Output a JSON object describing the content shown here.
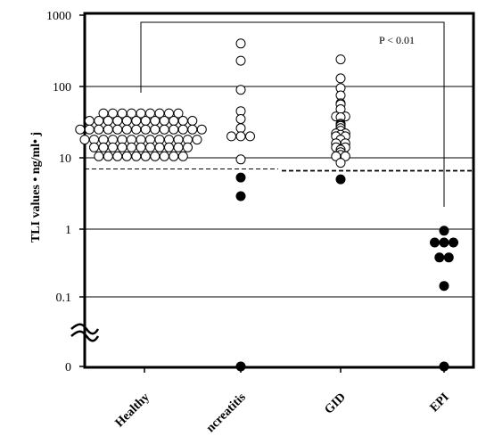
{
  "chart_data": {
    "type": "scatter",
    "ylabel": "TLI values • ng/ml• j",
    "yscale": "log",
    "ylim": [
      0,
      1000
    ],
    "yticks": [
      "1000",
      "100",
      "10",
      "1",
      "0.1",
      "0"
    ],
    "categories": [
      "Healthy",
      "Pancreatitis",
      "GID",
      "EPI"
    ],
    "category_labels_visible": [
      "Healthy",
      "ncreatitis",
      "GID",
      "EPI"
    ],
    "axis_break": "between 0.1 and 0",
    "reference_lines": [
      {
        "style": "dashed",
        "y": 6.5
      }
    ],
    "annotation": {
      "text": "P < 0.01",
      "between": [
        "Healthy",
        "EPI"
      ]
    },
    "series": [
      {
        "category": "Healthy",
        "marker": "open-circle",
        "values": [
          42,
          42,
          42,
          42,
          42,
          42,
          42,
          42,
          42,
          33,
          33,
          33,
          33,
          33,
          33,
          33,
          33,
          33,
          33,
          33,
          33,
          25,
          25,
          25,
          25,
          25,
          25,
          25,
          25,
          25,
          25,
          25,
          25,
          25,
          25,
          18,
          18,
          18,
          18,
          18,
          18,
          18,
          18,
          18,
          18,
          18,
          18,
          18,
          14,
          14,
          14,
          14,
          14,
          14,
          14,
          14,
          14,
          14,
          14,
          10.5,
          10.5,
          10.5,
          10.5,
          10.5,
          10.5,
          10.5,
          10.5,
          10.5,
          10.5
        ]
      },
      {
        "category": "Pancreatitis",
        "marker": "open-circle",
        "values": [
          400,
          230,
          90,
          45,
          35,
          26,
          20,
          20,
          20,
          9.5
        ]
      },
      {
        "category": "Pancreatitis",
        "marker": "filled-circle",
        "values": [
          5.3,
          2.9,
          0
        ]
      },
      {
        "category": "GID",
        "marker": "open-circle",
        "values": [
          240,
          130,
          95,
          75,
          58,
          56,
          48,
          38,
          38,
          37,
          30,
          29,
          28,
          26,
          24,
          22,
          22,
          21,
          20,
          20,
          18,
          16,
          16,
          14,
          14,
          13,
          12,
          11,
          10.5,
          10.5,
          8.5
        ]
      },
      {
        "category": "GID",
        "marker": "filled-circle",
        "values": [
          5
        ]
      },
      {
        "category": "EPI",
        "marker": "filled-circle",
        "values": [
          0.95,
          0.65,
          0.65,
          0.65,
          0.4,
          0.4,
          0.16,
          0
        ]
      }
    ]
  },
  "colors": {
    "ink": "#000000",
    "background": "#ffffff"
  }
}
